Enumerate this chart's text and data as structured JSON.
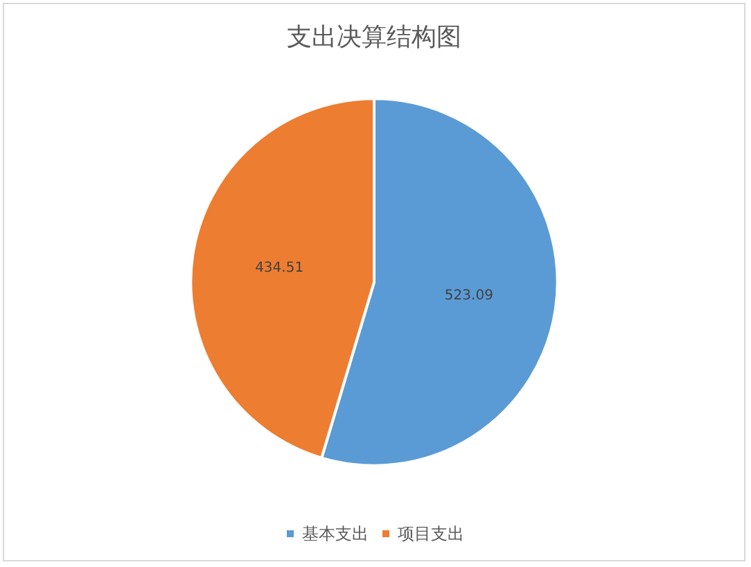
{
  "chart_data": {
    "type": "pie",
    "title": "支出决算结构图",
    "categories": [
      "基本支出",
      "项目支出"
    ],
    "values": [
      523.09,
      434.51
    ],
    "colors": [
      "#5b9bd5",
      "#ed7d31"
    ],
    "data_labels": true,
    "legend": "bottom"
  }
}
